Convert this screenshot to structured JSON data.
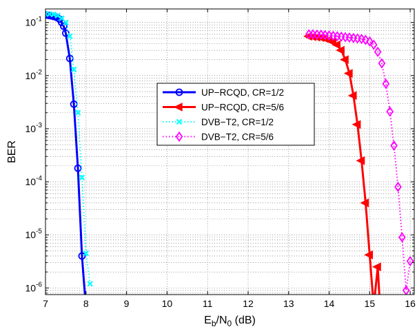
{
  "chart_data": {
    "type": "line",
    "title": "",
    "xlabel": {
      "main": "E",
      "sub1": "b",
      "mid": "/N",
      "sub2": "0",
      "tail": " (dB)"
    },
    "ylabel": "BER",
    "xlim": [
      7,
      16.1
    ],
    "ylim": [
      7.5e-07,
      0.18
    ],
    "yscale": "log",
    "grid": true,
    "legend_position": "center",
    "x_ticks": [
      7,
      8,
      9,
      10,
      11,
      12,
      13,
      14,
      15,
      16
    ],
    "y_ticks": [
      {
        "value": 1e-06,
        "exp": "-6"
      },
      {
        "value": 1e-05,
        "exp": "-5"
      },
      {
        "value": 0.0001,
        "exp": "-4"
      },
      {
        "value": 0.001,
        "exp": "-3"
      },
      {
        "value": 0.01,
        "exp": "-2"
      },
      {
        "value": 0.1,
        "exp": "-1"
      }
    ],
    "series": [
      {
        "name": "UP−RCQD, CR=1/2",
        "color": "#0000ff",
        "line_style": "solid",
        "marker": "circle",
        "x": [
          7.0,
          7.05,
          7.1,
          7.15,
          7.2,
          7.25,
          7.3,
          7.35,
          7.4,
          7.45,
          7.5,
          7.6,
          7.7,
          7.8,
          7.9,
          8.0
        ],
        "y": [
          0.138,
          0.137,
          0.135,
          0.133,
          0.13,
          0.127,
          0.122,
          0.115,
          0.1,
          0.085,
          0.063,
          0.021,
          0.0029,
          0.00018,
          4e-06,
          4e-07
        ]
      },
      {
        "name": "UP−RCQD, CR=5/6",
        "color": "#ff0000",
        "line_style": "solid",
        "marker": "triangle-left",
        "x": [
          13.5,
          13.6,
          13.7,
          13.8,
          13.9,
          14.0,
          14.1,
          14.2,
          14.3,
          14.4,
          14.5,
          14.6,
          14.7,
          14.8,
          14.9,
          15.0,
          15.1,
          15.2,
          15.3
        ],
        "y": [
          0.055,
          0.054,
          0.053,
          0.052,
          0.05,
          0.047,
          0.043,
          0.038,
          0.03,
          0.02,
          0.011,
          0.0042,
          0.0012,
          0.00025,
          4e-05,
          4.2e-06,
          4.5e-07,
          2.5e-06,
          1e-07
        ]
      },
      {
        "name": "DVB−T2, CR=1/2",
        "color": "#00ffff",
        "line_style": "dotted",
        "marker": "x",
        "x": [
          7.0,
          7.1,
          7.2,
          7.3,
          7.4,
          7.5,
          7.6,
          7.7,
          7.8,
          7.9,
          8.0,
          8.1
        ],
        "y": [
          0.145,
          0.144,
          0.142,
          0.135,
          0.12,
          0.1,
          0.055,
          0.013,
          0.002,
          0.00012,
          4.5e-06,
          1.2e-06
        ]
      },
      {
        "name": "DVB−T2, CR=5/6",
        "color": "#ff00ff",
        "line_style": "dotted",
        "marker": "diamond",
        "x": [
          13.5,
          13.6,
          13.7,
          13.8,
          13.9,
          14.0,
          14.1,
          14.2,
          14.3,
          14.4,
          14.5,
          14.6,
          14.7,
          14.8,
          14.9,
          15.0,
          15.1,
          15.2,
          15.3,
          15.4,
          15.5,
          15.6,
          15.7,
          15.8,
          15.9,
          16.0
        ],
        "y": [
          0.06,
          0.06,
          0.059,
          0.059,
          0.058,
          0.057,
          0.056,
          0.055,
          0.054,
          0.053,
          0.052,
          0.051,
          0.05,
          0.049,
          0.047,
          0.044,
          0.038,
          0.028,
          0.017,
          0.007,
          0.0021,
          0.00048,
          8e-05,
          9e-06,
          9e-07,
          3.2e-06
        ]
      }
    ]
  }
}
